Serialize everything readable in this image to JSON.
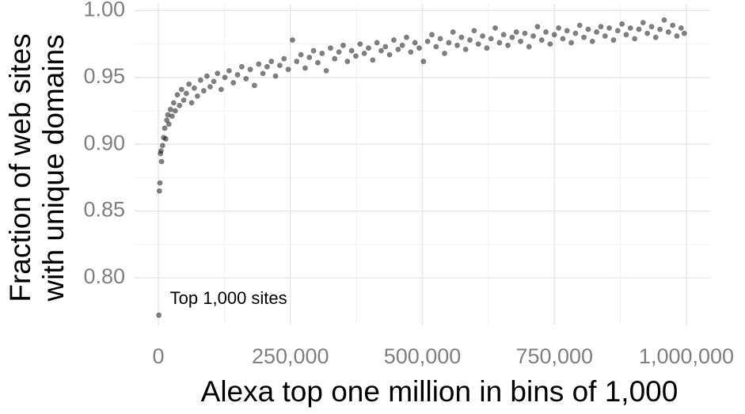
{
  "chart_data": {
    "type": "scatter",
    "x_label": "Alexa top one million in bins of 1,000",
    "y_label": [
      "Fraction of web sites",
      "with unique domains"
    ],
    "annotation": "Top 1,000 sites",
    "color": "#000000",
    "grid": true,
    "xlim": [
      -45000,
      1045000
    ],
    "ylim": [
      0.765,
      1.005
    ],
    "xticks": [
      0,
      {
        "value": 250000,
        "label": "250,000"
      },
      {
        "value": 500000,
        "label": "500,000"
      },
      {
        "value": 750000,
        "label": "750,000"
      },
      {
        "value": 1000000,
        "label": "1,000,000"
      }
    ],
    "yticks": [
      {
        "value": 0.8,
        "label": "0.80"
      },
      {
        "value": 0.85,
        "label": "0.85"
      },
      {
        "value": 0.9,
        "label": "0.90"
      },
      {
        "value": 0.95,
        "label": "0.95"
      },
      {
        "value": 1.0,
        "label": "1.00"
      }
    ],
    "x": [
      1000,
      2000,
      3000,
      4000,
      5000,
      6000,
      8000,
      10000,
      12000,
      14000,
      16000,
      18000,
      20000,
      23000,
      26000,
      29000,
      32000,
      36000,
      40000,
      44000,
      48000,
      53000,
      58000,
      63000,
      68000,
      74000,
      80000,
      86000,
      92000,
      98000,
      105000,
      112000,
      119000,
      126000,
      134000,
      142000,
      150000,
      158000,
      166000,
      174000,
      182000,
      190000,
      198000,
      206000,
      214000,
      222000,
      230000,
      238000,
      246000,
      254000,
      262000,
      270000,
      278000,
      286000,
      294000,
      302000,
      310000,
      318000,
      326000,
      334000,
      342000,
      350000,
      358000,
      366000,
      374000,
      382000,
      390000,
      398000,
      406000,
      414000,
      422000,
      430000,
      438000,
      446000,
      454000,
      462000,
      470000,
      478000,
      486000,
      494000,
      502000,
      510000,
      518000,
      526000,
      534000,
      542000,
      550000,
      558000,
      566000,
      574000,
      582000,
      590000,
      598000,
      606000,
      614000,
      622000,
      630000,
      638000,
      646000,
      654000,
      662000,
      670000,
      678000,
      686000,
      694000,
      702000,
      710000,
      718000,
      726000,
      734000,
      742000,
      750000,
      758000,
      766000,
      774000,
      782000,
      790000,
      798000,
      806000,
      814000,
      822000,
      830000,
      838000,
      846000,
      854000,
      862000,
      870000,
      878000,
      886000,
      894000,
      902000,
      910000,
      918000,
      926000,
      934000,
      942000,
      950000,
      958000,
      966000,
      974000,
      982000,
      990000,
      996000
    ],
    "values": [
      0.772,
      0.865,
      0.871,
      0.893,
      0.895,
      0.887,
      0.899,
      0.905,
      0.912,
      0.904,
      0.918,
      0.922,
      0.915,
      0.926,
      0.921,
      0.931,
      0.925,
      0.937,
      0.929,
      0.941,
      0.933,
      0.938,
      0.945,
      0.931,
      0.942,
      0.936,
      0.948,
      0.94,
      0.951,
      0.943,
      0.947,
      0.953,
      0.941,
      0.95,
      0.955,
      0.946,
      0.952,
      0.958,
      0.949,
      0.956,
      0.944,
      0.96,
      0.953,
      0.958,
      0.962,
      0.951,
      0.959,
      0.964,
      0.956,
      0.978,
      0.962,
      0.967,
      0.957,
      0.965,
      0.97,
      0.961,
      0.968,
      0.955,
      0.972,
      0.964,
      0.969,
      0.974,
      0.962,
      0.97,
      0.966,
      0.975,
      0.968,
      0.972,
      0.963,
      0.976,
      0.97,
      0.973,
      0.967,
      0.978,
      0.971,
      0.974,
      0.98,
      0.969,
      0.976,
      0.972,
      0.962,
      0.977,
      0.982,
      0.973,
      0.979,
      0.968,
      0.976,
      0.984,
      0.974,
      0.98,
      0.971,
      0.978,
      0.985,
      0.975,
      0.981,
      0.972,
      0.979,
      0.987,
      0.976,
      0.982,
      0.974,
      0.98,
      0.984,
      0.977,
      0.983,
      0.973,
      0.981,
      0.988,
      0.978,
      0.984,
      0.975,
      0.982,
      0.987,
      0.979,
      0.985,
      0.976,
      0.983,
      0.989,
      0.98,
      0.986,
      0.977,
      0.984,
      0.988,
      0.981,
      0.987,
      0.978,
      0.985,
      0.99,
      0.982,
      0.987,
      0.979,
      0.986,
      0.991,
      0.983,
      0.988,
      0.98,
      0.986,
      0.993,
      0.984,
      0.989,
      0.981,
      0.987,
      0.983
    ]
  }
}
